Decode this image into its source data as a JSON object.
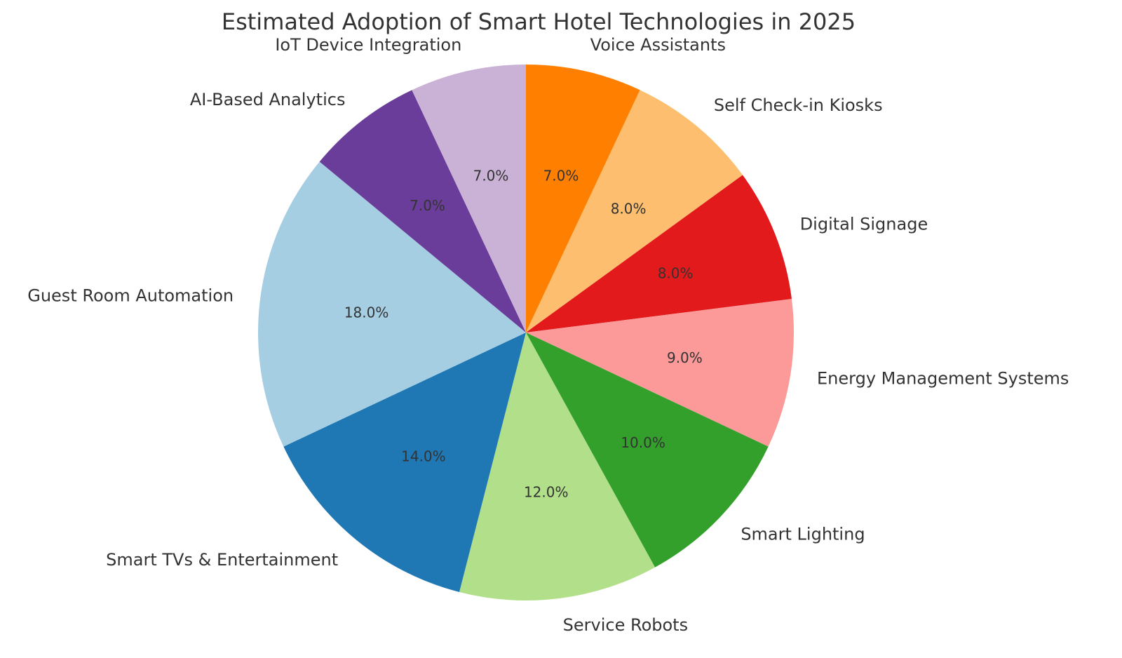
{
  "chart_data": {
    "type": "pie",
    "title": "Estimated Adoption of Smart Hotel Technologies in 2025",
    "start_angle_deg": 90,
    "direction": "clockwise",
    "slices": [
      {
        "label": "Voice Assistants",
        "value": 7.0,
        "pct_label": "7.0%",
        "color": "#ff7f00"
      },
      {
        "label": "Self Check-in Kiosks",
        "value": 8.0,
        "pct_label": "8.0%",
        "color": "#fdbf6f"
      },
      {
        "label": "Digital Signage",
        "value": 8.0,
        "pct_label": "8.0%",
        "color": "#e31a1c"
      },
      {
        "label": "Energy Management Systems",
        "value": 9.0,
        "pct_label": "9.0%",
        "color": "#fb9a99"
      },
      {
        "label": "Smart Lighting",
        "value": 10.0,
        "pct_label": "10.0%",
        "color": "#33a02c"
      },
      {
        "label": "Service Robots",
        "value": 12.0,
        "pct_label": "12.0%",
        "color": "#b2df8a"
      },
      {
        "label": "Smart TVs & Entertainment",
        "value": 14.0,
        "pct_label": "14.0%",
        "color": "#1f78b4"
      },
      {
        "label": "Guest Room Automation",
        "value": 18.0,
        "pct_label": "18.0%",
        "color": "#a6cee3"
      },
      {
        "label": "AI-Based Analytics",
        "value": 7.0,
        "pct_label": "7.0%",
        "color": "#6a3d9a"
      },
      {
        "label": "IoT Device Integration",
        "value": 7.0,
        "pct_label": "7.0%",
        "color": "#cab2d6"
      }
    ]
  }
}
